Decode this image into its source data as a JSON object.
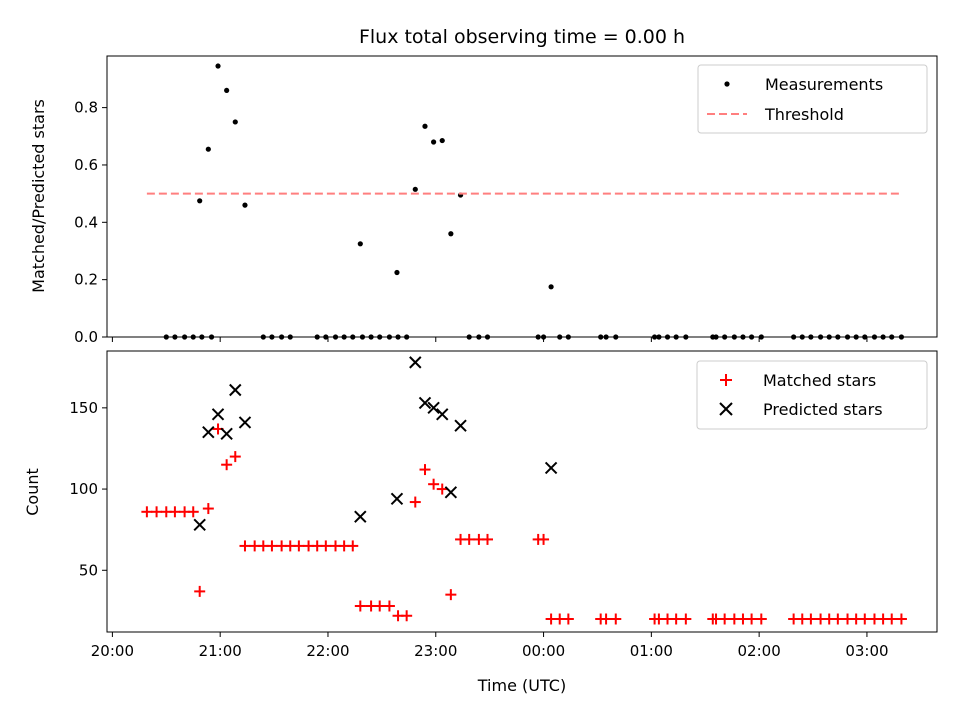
{
  "chart_data": [
    {
      "type": "scatter",
      "title": "Flux total observing time = 0.00 h",
      "ylabel": "Matched/Predicted stars",
      "xlabel": "",
      "ylim": [
        0,
        0.98
      ],
      "yticks": [
        "0.0",
        "0.2",
        "0.4",
        "0.6",
        "0.8"
      ],
      "ytick_values": [
        0,
        0.2,
        0.4,
        0.6,
        0.8
      ],
      "legend_placement": "top-right",
      "grid": false,
      "series": [
        {
          "name": "Measurements",
          "color": "#000000",
          "marker": "dot",
          "points": [
            [
              20.5,
              0
            ],
            [
              20.58,
              0
            ],
            [
              20.67,
              0
            ],
            [
              20.75,
              0
            ],
            [
              20.83,
              0
            ],
            [
              20.92,
              0
            ],
            [
              20.81,
              0.475
            ],
            [
              20.89,
              0.655
            ],
            [
              20.98,
              0.945
            ],
            [
              21.06,
              0.86
            ],
            [
              21.14,
              0.75
            ],
            [
              21.23,
              0.46
            ],
            [
              21.4,
              0
            ],
            [
              21.48,
              0
            ],
            [
              21.57,
              0
            ],
            [
              21.65,
              0
            ],
            [
              21.9,
              0
            ],
            [
              21.98,
              0
            ],
            [
              22.07,
              0
            ],
            [
              22.15,
              0
            ],
            [
              22.23,
              0
            ],
            [
              22.32,
              0
            ],
            [
              22.4,
              0
            ],
            [
              22.3,
              0.325
            ],
            [
              22.48,
              0
            ],
            [
              22.57,
              0
            ],
            [
              22.65,
              0
            ],
            [
              22.64,
              0.225
            ],
            [
              22.73,
              0
            ],
            [
              22.81,
              0.515
            ],
            [
              22.9,
              0.735
            ],
            [
              22.98,
              0.68
            ],
            [
              23.06,
              0.685
            ],
            [
              23.14,
              0.36
            ],
            [
              23.23,
              0.495
            ],
            [
              23.31,
              0
            ],
            [
              23.4,
              0
            ],
            [
              23.48,
              0
            ],
            [
              23.95,
              0
            ],
            [
              24.0,
              0
            ],
            [
              24.07,
              0.175
            ],
            [
              24.15,
              0
            ],
            [
              24.23,
              0
            ],
            [
              24.53,
              0
            ],
            [
              24.58,
              0
            ],
            [
              24.67,
              0
            ],
            [
              25.03,
              0
            ],
            [
              25.07,
              0
            ],
            [
              25.15,
              0
            ],
            [
              25.23,
              0
            ],
            [
              25.32,
              0
            ],
            [
              25.57,
              0
            ],
            [
              25.6,
              0
            ],
            [
              25.68,
              0
            ],
            [
              25.77,
              0
            ],
            [
              25.85,
              0
            ],
            [
              25.93,
              0
            ],
            [
              26.02,
              0
            ],
            [
              26.32,
              0
            ],
            [
              26.4,
              0
            ],
            [
              26.48,
              0
            ],
            [
              26.57,
              0
            ],
            [
              26.65,
              0
            ],
            [
              26.73,
              0
            ],
            [
              26.82,
              0
            ],
            [
              26.9,
              0
            ],
            [
              26.98,
              0
            ],
            [
              27.07,
              0
            ],
            [
              27.15,
              0
            ],
            [
              27.23,
              0
            ],
            [
              27.32,
              0
            ]
          ]
        },
        {
          "name": "Threshold",
          "color": "#ff7f7f",
          "style": "dashed",
          "points": [
            [
              20.32,
              0.5
            ],
            [
              27.32,
              0.5
            ]
          ]
        }
      ]
    },
    {
      "type": "scatter",
      "title": "",
      "ylabel": "Count",
      "xlabel": "Time (UTC)",
      "ylim": [
        12,
        185
      ],
      "yticks": [
        "50",
        "100",
        "150"
      ],
      "ytick_values": [
        50,
        100,
        150
      ],
      "x_ticks": [
        "20:00",
        "21:00",
        "22:00",
        "23:00",
        "00:00",
        "01:00",
        "02:00",
        "03:00"
      ],
      "x_tick_values": [
        20,
        21,
        22,
        23,
        24,
        25,
        26,
        27
      ],
      "xlim": [
        19.95,
        27.65
      ],
      "legend_placement": "top-right",
      "grid": false,
      "series": [
        {
          "name": "Matched stars",
          "color": "#ff0000",
          "marker": "plus",
          "points": [
            [
              20.32,
              86
            ],
            [
              20.41,
              86
            ],
            [
              20.5,
              86
            ],
            [
              20.58,
              86
            ],
            [
              20.67,
              86
            ],
            [
              20.75,
              86
            ],
            [
              20.81,
              37
            ],
            [
              20.89,
              88
            ],
            [
              20.98,
              137
            ],
            [
              21.06,
              115
            ],
            [
              21.14,
              120
            ],
            [
              21.23,
              65
            ],
            [
              21.32,
              65
            ],
            [
              21.4,
              65
            ],
            [
              21.48,
              65
            ],
            [
              21.57,
              65
            ],
            [
              21.65,
              65
            ],
            [
              21.73,
              65
            ],
            [
              21.82,
              65
            ],
            [
              21.9,
              65
            ],
            [
              21.98,
              65
            ],
            [
              22.07,
              65
            ],
            [
              22.15,
              65
            ],
            [
              22.23,
              65
            ],
            [
              22.3,
              28
            ],
            [
              22.4,
              28
            ],
            [
              22.48,
              28
            ],
            [
              22.57,
              28
            ],
            [
              22.65,
              22
            ],
            [
              22.73,
              22
            ],
            [
              22.81,
              92
            ],
            [
              22.9,
              112
            ],
            [
              22.98,
              103
            ],
            [
              23.06,
              100
            ],
            [
              23.14,
              35
            ],
            [
              23.23,
              69
            ],
            [
              23.31,
              69
            ],
            [
              23.4,
              69
            ],
            [
              23.48,
              69
            ],
            [
              23.95,
              69
            ],
            [
              24.0,
              69
            ],
            [
              24.07,
              20
            ],
            [
              24.15,
              20
            ],
            [
              24.23,
              20
            ],
            [
              24.53,
              20
            ],
            [
              24.58,
              20
            ],
            [
              24.67,
              20
            ],
            [
              25.03,
              20
            ],
            [
              25.07,
              20
            ],
            [
              25.15,
              20
            ],
            [
              25.23,
              20
            ],
            [
              25.32,
              20
            ],
            [
              25.57,
              20
            ],
            [
              25.6,
              20
            ],
            [
              25.68,
              20
            ],
            [
              25.77,
              20
            ],
            [
              25.85,
              20
            ],
            [
              25.93,
              20
            ],
            [
              26.02,
              20
            ],
            [
              26.32,
              20
            ],
            [
              26.4,
              20
            ],
            [
              26.48,
              20
            ],
            [
              26.57,
              20
            ],
            [
              26.65,
              20
            ],
            [
              26.73,
              20
            ],
            [
              26.82,
              20
            ],
            [
              26.9,
              20
            ],
            [
              26.98,
              20
            ],
            [
              27.07,
              20
            ],
            [
              27.15,
              20
            ],
            [
              27.23,
              20
            ],
            [
              27.32,
              20
            ]
          ]
        },
        {
          "name": "Predicted stars",
          "color": "#000000",
          "marker": "x",
          "points": [
            [
              20.81,
              78
            ],
            [
              20.89,
              135
            ],
            [
              20.98,
              146
            ],
            [
              21.06,
              134
            ],
            [
              21.14,
              161
            ],
            [
              21.23,
              141
            ],
            [
              22.3,
              83
            ],
            [
              22.64,
              94
            ],
            [
              22.81,
              178
            ],
            [
              22.9,
              153
            ],
            [
              22.98,
              150
            ],
            [
              23.06,
              146
            ],
            [
              23.14,
              98
            ],
            [
              23.23,
              139
            ],
            [
              24.07,
              113
            ]
          ]
        }
      ]
    }
  ]
}
